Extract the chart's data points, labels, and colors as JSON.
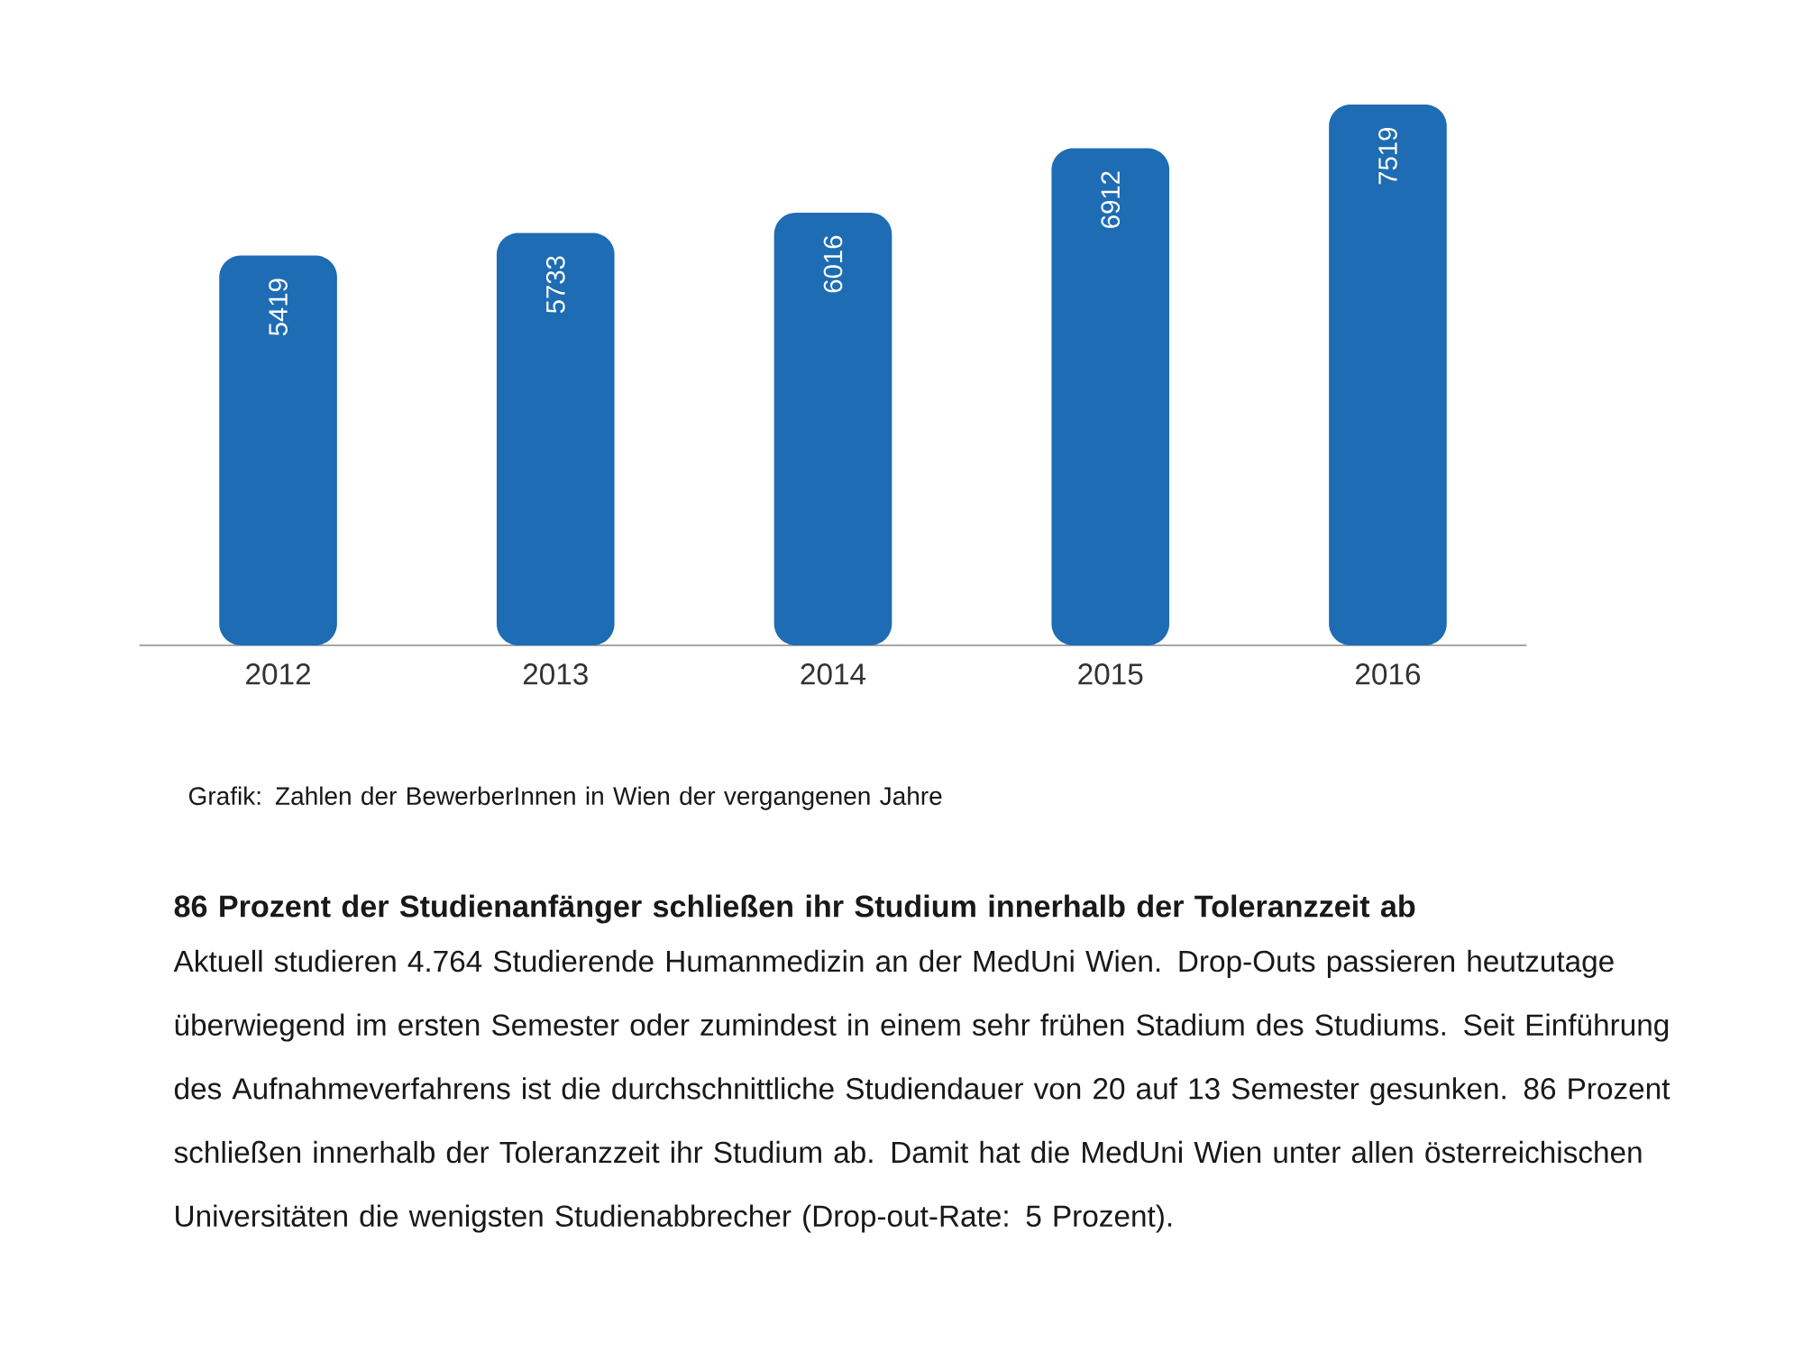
{
  "chart_data": {
    "type": "bar",
    "categories": [
      "2012",
      "2013",
      "2014",
      "2015",
      "2016"
    ],
    "values": [
      5419,
      5733,
      6016,
      6912,
      7519
    ],
    "color": "#1e6cb3",
    "data_labels": true,
    "annotations": [
      "Grafik: Zahlen der BewerberInnen in Wien der vergangenen Jahre",
      "86 Prozent der Studienanfänger schließen ihr Studium innerhalb der Toleranzzeit ab",
      "Aktuell studieren 4.764 Studierende Humanmedizin an der MedUni Wien. Drop-Outs passieren heutzutage überwiegend im ersten Semester oder zumindest in einem sehr frühen Stadium des Studiums. Seit Einführung des Aufnahmeverfahrens ist die durchschnittliche Studiendauer von 20 auf 13 Semester gesunken. 86 Prozent schließen innerhalb der Toleranzzeit ihr Studium ab. Damit hat die MedUni Wien unter allen österreichischen Universitäten die wenigsten Studienabbrecher (Drop-out-Rate: 5 Prozent)."
    ]
  }
}
